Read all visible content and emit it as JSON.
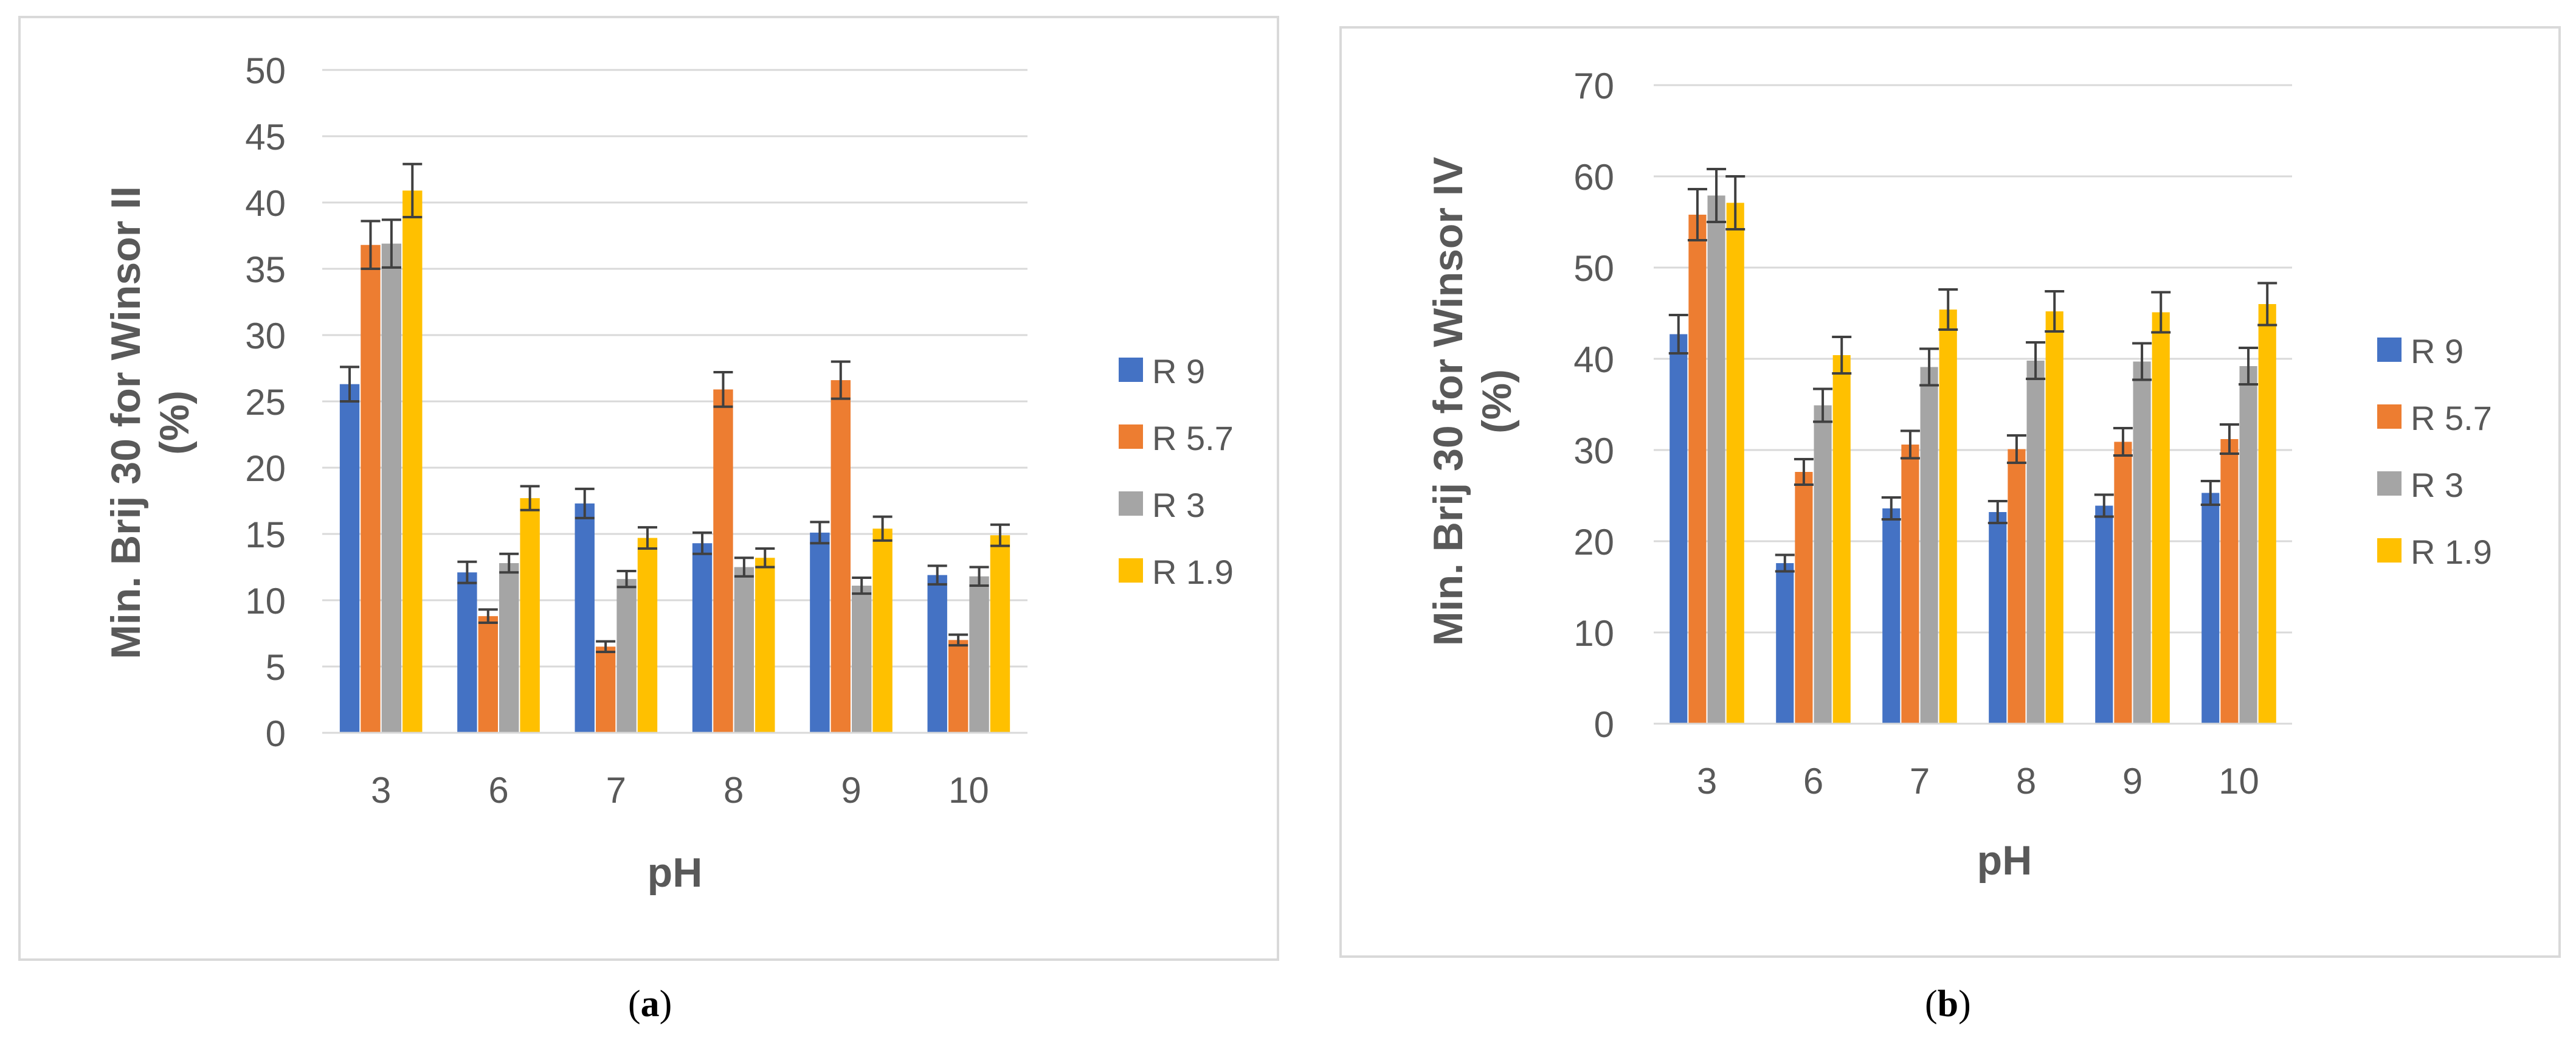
{
  "chart_data": [
    {
      "type": "bar",
      "panel": "a",
      "caption_prefix": "(",
      "caption_letter": "a",
      "caption_suffix": ")",
      "title": "",
      "xlabel": "pH",
      "ylabel": [
        "Min. Brij 30 for Winsor II",
        "(%)"
      ],
      "ylim": [
        0,
        50
      ],
      "yticks": [
        0,
        5,
        10,
        15,
        20,
        25,
        30,
        35,
        40,
        45,
        50
      ],
      "grid": true,
      "legend_position": "right",
      "categories": [
        "3",
        "6",
        "7",
        "8",
        "9",
        "10"
      ],
      "series": [
        {
          "name": "R 9",
          "color": "#4472C4",
          "values": [
            26.3,
            12.1,
            17.3,
            14.3,
            15.1,
            11.9
          ],
          "errors": [
            1.3,
            0.8,
            1.1,
            0.8,
            0.8,
            0.7
          ]
        },
        {
          "name": "R 5.7",
          "color": "#ED7D31",
          "values": [
            36.8,
            8.8,
            6.5,
            25.9,
            26.6,
            7.0
          ],
          "errors": [
            1.8,
            0.5,
            0.4,
            1.3,
            1.4,
            0.4
          ]
        },
        {
          "name": "R 3",
          "color": "#A5A5A5",
          "values": [
            36.9,
            12.8,
            11.6,
            12.5,
            11.1,
            11.8
          ],
          "errors": [
            1.8,
            0.7,
            0.6,
            0.7,
            0.6,
            0.7
          ]
        },
        {
          "name": "R 1.9",
          "color": "#FFC000",
          "values": [
            40.9,
            17.7,
            14.7,
            13.2,
            15.4,
            14.9
          ],
          "errors": [
            2.0,
            0.9,
            0.8,
            0.7,
            0.9,
            0.8
          ]
        }
      ]
    },
    {
      "type": "bar",
      "panel": "b",
      "caption_prefix": "(",
      "caption_letter": "b",
      "caption_suffix": ")",
      "title": "",
      "xlabel": "pH",
      "ylabel": [
        "Min. Brij 30 for Winsor IV",
        "(%)"
      ],
      "ylim": [
        0,
        70
      ],
      "yticks": [
        0,
        10,
        20,
        30,
        40,
        50,
        60,
        70
      ],
      "grid": true,
      "legend_position": "right",
      "categories": [
        "3",
        "6",
        "7",
        "8",
        "9",
        "10"
      ],
      "series": [
        {
          "name": "R 9",
          "color": "#4472C4",
          "values": [
            42.7,
            17.6,
            23.6,
            23.2,
            23.9,
            25.3
          ],
          "errors": [
            2.1,
            0.9,
            1.2,
            1.2,
            1.2,
            1.3
          ]
        },
        {
          "name": "R 5.7",
          "color": "#ED7D31",
          "values": [
            55.8,
            27.6,
            30.6,
            30.1,
            30.9,
            31.2
          ],
          "errors": [
            2.8,
            1.4,
            1.5,
            1.5,
            1.5,
            1.6
          ]
        },
        {
          "name": "R 3",
          "color": "#A5A5A5",
          "values": [
            57.9,
            34.9,
            39.1,
            39.8,
            39.7,
            39.2
          ],
          "errors": [
            2.9,
            1.8,
            2.0,
            2.0,
            2.0,
            2.0
          ]
        },
        {
          "name": "R 1.9",
          "color": "#FFC000",
          "values": [
            57.1,
            40.4,
            45.4,
            45.2,
            45.1,
            46.0
          ],
          "errors": [
            2.9,
            2.0,
            2.2,
            2.2,
            2.2,
            2.3
          ]
        }
      ]
    }
  ]
}
